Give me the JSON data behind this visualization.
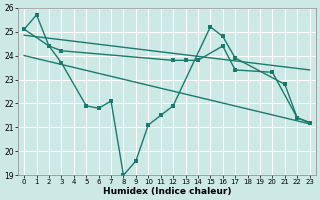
{
  "xlabel": "Humidex (Indice chaleur)",
  "xlim": [
    -0.5,
    23.5
  ],
  "ylim": [
    19,
    26
  ],
  "yticks": [
    19,
    20,
    21,
    22,
    23,
    24,
    25,
    26
  ],
  "xticks": [
    0,
    1,
    2,
    3,
    4,
    5,
    6,
    7,
    8,
    9,
    10,
    11,
    12,
    13,
    14,
    15,
    16,
    17,
    18,
    19,
    20,
    21,
    22,
    23
  ],
  "bg_color": "#cce9e5",
  "grid_color": "#b8d8d4",
  "line_color": "#1a7a6e",
  "zigzag_segments": [
    {
      "x": [
        0,
        1,
        2,
        3
      ],
      "y": [
        25.1,
        25.7,
        24.4,
        23.7
      ]
    },
    {
      "x": [
        3,
        5,
        6,
        7
      ],
      "y": [
        23.7,
        21.9,
        21.8,
        22.1
      ]
    },
    {
      "x": [
        7,
        8,
        9,
        10,
        11,
        12
      ],
      "y": [
        22.1,
        19.0,
        19.6,
        21.1,
        21.5,
        21.9
      ]
    },
    {
      "x": [
        12,
        15,
        16,
        17
      ],
      "y": [
        21.9,
        25.2,
        24.8,
        23.9
      ]
    },
    {
      "x": [
        17,
        21,
        22,
        23
      ],
      "y": [
        23.9,
        22.8,
        21.4,
        21.2
      ]
    }
  ],
  "smooth_x": [
    0,
    2,
    3,
    12,
    13,
    14,
    16,
    17,
    20,
    22,
    23
  ],
  "smooth_y": [
    25.1,
    24.4,
    24.2,
    23.8,
    23.8,
    23.8,
    24.4,
    23.4,
    23.3,
    21.4,
    21.2
  ],
  "trend1_x": [
    0,
    23
  ],
  "trend1_y": [
    24.85,
    23.4
  ],
  "trend2_x": [
    0,
    23
  ],
  "trend2_y": [
    24.0,
    21.15
  ]
}
